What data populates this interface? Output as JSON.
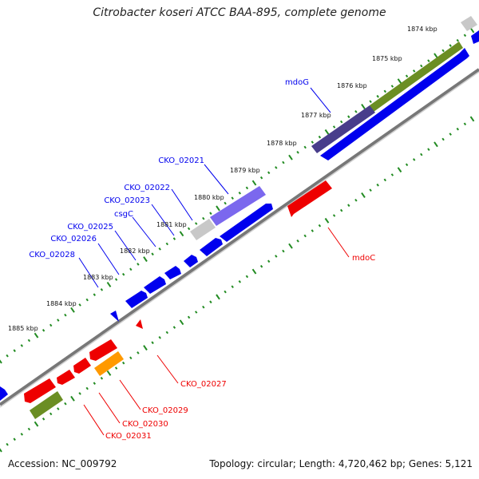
{
  "title": "Citrobacter koseri ATCC BAA-895, complete genome",
  "accession": "Accession: NC_009792",
  "summary": "Topology: circular; Length: 4,720,462 bp; Genes: 5,121",
  "colors": {
    "forward_cds": "#0000ee",
    "reverse_cds": "#ee0000",
    "olive_feature": "#6b8e23",
    "purple_feature": "#483d8b",
    "lavender_feature": "#7b68ee",
    "orange_feature": "#ff9900",
    "grey_feature": "#c8c8c8",
    "tick": "#228b22",
    "backbone": "#888888"
  },
  "ruler": [
    {
      "label": "1874 kbp"
    },
    {
      "label": "1875 kbp"
    },
    {
      "label": "1876 kbp"
    },
    {
      "label": "1877 kbp"
    },
    {
      "label": "1878 kbp"
    },
    {
      "label": "1879 kbp"
    },
    {
      "label": "1880 kbp"
    },
    {
      "label": "1881 kbp"
    },
    {
      "label": "1882 kbp"
    },
    {
      "label": "1883 kbp"
    },
    {
      "label": "1884 kbp"
    },
    {
      "label": "1885 kbp"
    }
  ],
  "forward_labels": [
    {
      "text": "mdoG"
    },
    {
      "text": "CKO_02021"
    },
    {
      "text": "CKO_02022"
    },
    {
      "text": "CKO_02023"
    },
    {
      "text": "csgC"
    },
    {
      "text": "CKO_02025"
    },
    {
      "text": "CKO_02026"
    },
    {
      "text": "CKO_02028"
    }
  ],
  "reverse_labels": [
    {
      "text": "mdoC"
    },
    {
      "text": "CKO_02027"
    },
    {
      "text": "CKO_02029"
    },
    {
      "text": "CKO_02030"
    },
    {
      "text": "CKO_02031"
    }
  ]
}
